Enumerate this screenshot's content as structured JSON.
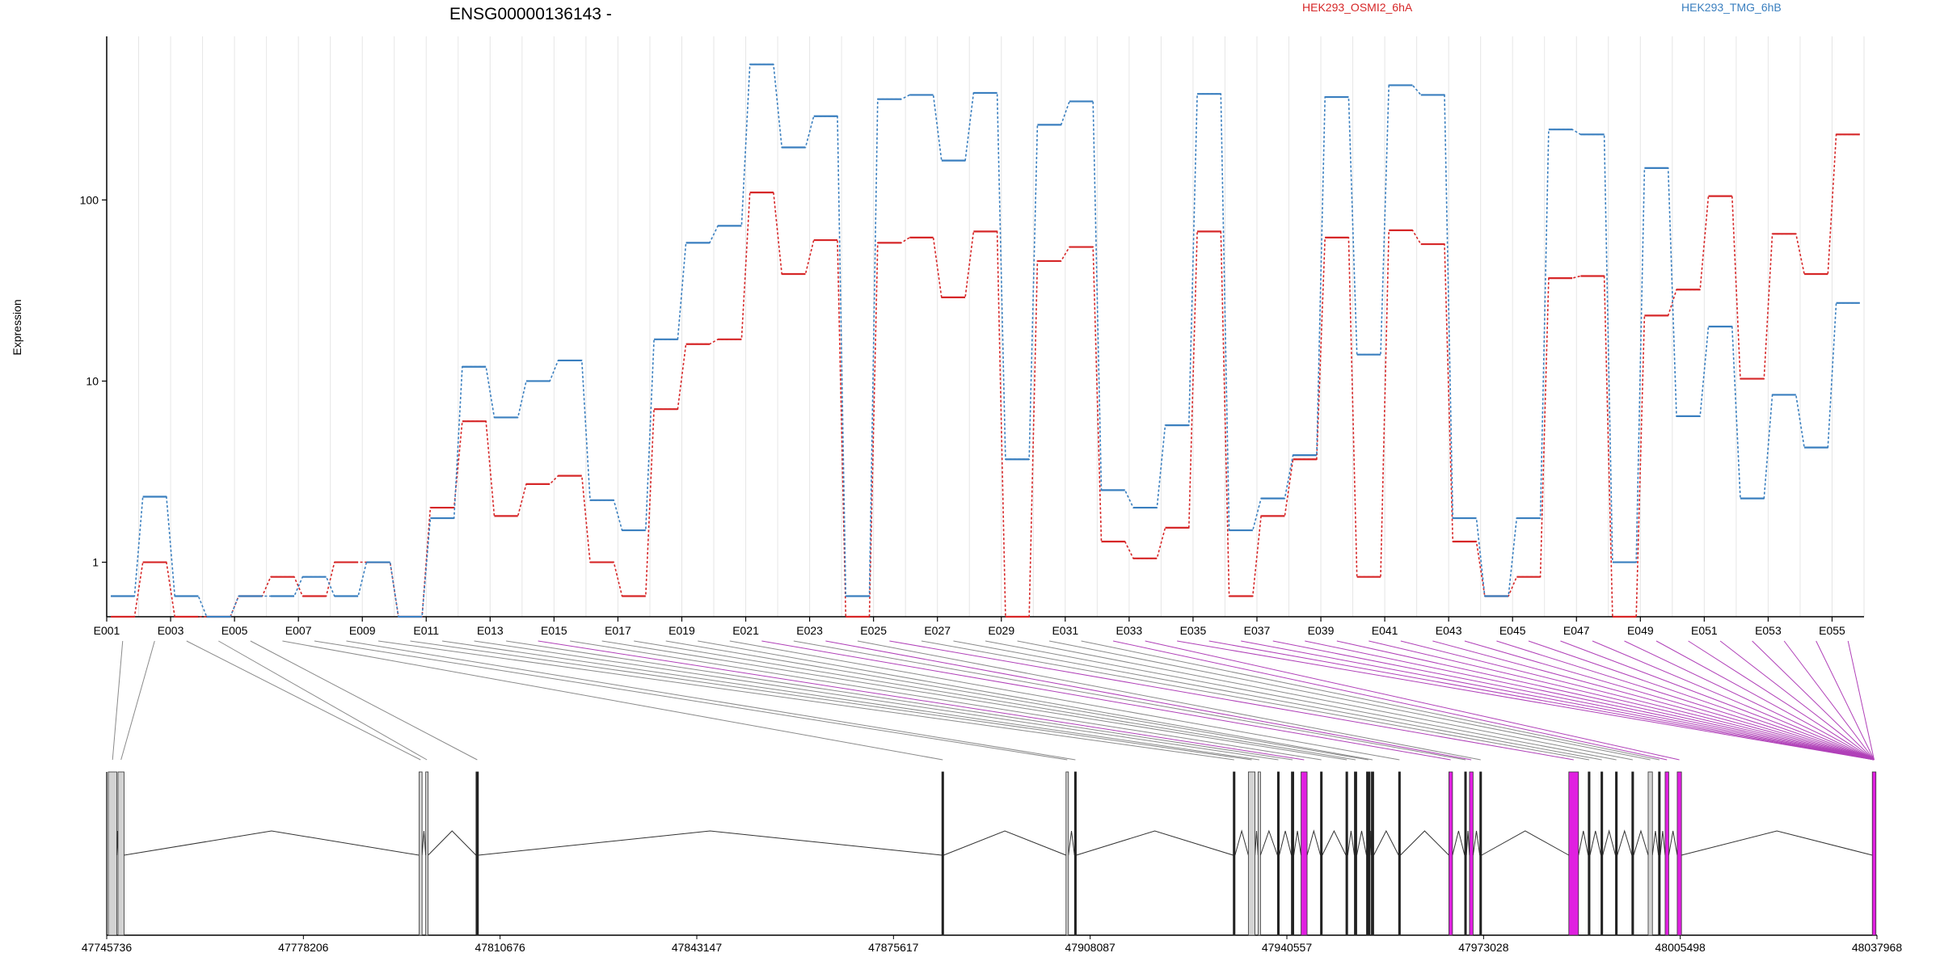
{
  "chart_data": {
    "type": "line",
    "title": "ENSG00000136143 -",
    "ylabel": "Expression",
    "xlabel": "",
    "y_scale": "log",
    "y_ticks": [
      1,
      10,
      100
    ],
    "ylim": [
      0.5,
      800
    ],
    "grid": "vertical lines at each exon",
    "legend_position": "top",
    "categories": [
      "E001",
      "E002",
      "E003",
      "E004",
      "E005",
      "E006",
      "E007",
      "E008",
      "E009",
      "E010",
      "E011",
      "E012",
      "E013",
      "E014",
      "E015",
      "E016",
      "E017",
      "E018",
      "E019",
      "E020",
      "E021",
      "E022",
      "E023",
      "E024",
      "E025",
      "E026",
      "E027",
      "E028",
      "E029",
      "E030",
      "E031",
      "E032",
      "E033",
      "E034",
      "E035",
      "E036",
      "E037",
      "E038",
      "E039",
      "E040",
      "E041",
      "E042",
      "E043",
      "E044",
      "E045",
      "E046",
      "E047",
      "E048",
      "E049",
      "E050",
      "E051",
      "E052",
      "E053",
      "E054",
      "E055"
    ],
    "tick_labels": [
      "E001",
      "E003",
      "E005",
      "E007",
      "E009",
      "E011",
      "E013",
      "E015",
      "E017",
      "E019",
      "E021",
      "E023",
      "E025",
      "E027",
      "E029",
      "E031",
      "E033",
      "E035",
      "E037",
      "E039",
      "E041",
      "E043",
      "E045",
      "E047",
      "E049",
      "E051",
      "E053",
      "E055"
    ],
    "series": [
      {
        "name": "HEK293_OSMI2_6hA",
        "color": "#d62728",
        "values": [
          0.5,
          1.0,
          0.5,
          0.5,
          0.65,
          0.83,
          0.65,
          1.0,
          1.0,
          0.5,
          2.0,
          6.0,
          1.8,
          2.7,
          3.0,
          1.0,
          0.65,
          7.0,
          16,
          17,
          110,
          39,
          60,
          0.5,
          58,
          62,
          29,
          67,
          0.5,
          46,
          55,
          1.3,
          1.05,
          1.55,
          67,
          0.65,
          1.8,
          3.7,
          62,
          0.83,
          68,
          57,
          1.3,
          0.65,
          0.83,
          37,
          38,
          0.5,
          23,
          32,
          105,
          10.3,
          65,
          39,
          230
        ]
      },
      {
        "name": "HEK293_TMG_6hB",
        "color": "#3a7fbf",
        "values": [
          0.65,
          2.3,
          0.65,
          0.5,
          0.65,
          0.65,
          0.83,
          0.65,
          1.0,
          0.5,
          1.75,
          12,
          6.3,
          10,
          13,
          2.2,
          1.5,
          17,
          58,
          72,
          560,
          195,
          290,
          0.65,
          360,
          380,
          165,
          390,
          3.7,
          260,
          350,
          2.5,
          2.0,
          5.7,
          385,
          1.5,
          2.25,
          3.9,
          370,
          14,
          430,
          380,
          1.75,
          0.65,
          1.75,
          245,
          230,
          1.0,
          150,
          6.4,
          20,
          2.25,
          8.4,
          4.3,
          27
        ]
      }
    ],
    "gene_model": {
      "coordinate_labels": [
        "47745736",
        "47778206",
        "47810676",
        "47843147",
        "47875617",
        "47908087",
        "47940557",
        "47973028",
        "48005498",
        "48037968"
      ],
      "coord_range": [
        47745736,
        48037968
      ],
      "exons": [
        {
          "pos": 47746000,
          "width": 1400,
          "color": "#d3d3d3",
          "outline": "#333333"
        },
        {
          "pos": 47747600,
          "width": 1000,
          "color": "#d3d3d3",
          "outline": "#333333"
        },
        {
          "pos": 47797300,
          "width": 500,
          "color": "#d3d3d3",
          "outline": "#333333"
        },
        {
          "pos": 47798400,
          "width": 400,
          "color": "#d3d3d3",
          "outline": "#333333"
        },
        {
          "pos": 47806700,
          "width": 400,
          "color": "#222222",
          "outline": "#222222"
        },
        {
          "pos": 47883600,
          "width": 300,
          "color": "#222222",
          "outline": "#222222"
        },
        {
          "pos": 47904100,
          "width": 400,
          "color": "#d3d3d3",
          "outline": "#333333"
        },
        {
          "pos": 47905500,
          "width": 300,
          "color": "#222222",
          "outline": "#222222"
        },
        {
          "pos": 47931700,
          "width": 300,
          "color": "#222222",
          "outline": "#222222"
        },
        {
          "pos": 47934200,
          "width": 1100,
          "color": "#d3d3d3",
          "outline": "#333333"
        },
        {
          "pos": 47935800,
          "width": 400,
          "color": "#d3d3d3",
          "outline": "#333333"
        },
        {
          "pos": 47939000,
          "width": 300,
          "color": "#222222",
          "outline": "#222222"
        },
        {
          "pos": 47941300,
          "width": 400,
          "color": "#222222",
          "outline": "#222222"
        },
        {
          "pos": 47942900,
          "width": 1000,
          "color": "#e020e0",
          "outline": "#333333"
        },
        {
          "pos": 47946100,
          "width": 300,
          "color": "#222222",
          "outline": "#222222"
        },
        {
          "pos": 47950300,
          "width": 300,
          "color": "#222222",
          "outline": "#222222"
        },
        {
          "pos": 47951700,
          "width": 400,
          "color": "#222222",
          "outline": "#222222"
        },
        {
          "pos": 47953700,
          "width": 600,
          "color": "#222222",
          "outline": "#222222"
        },
        {
          "pos": 47954500,
          "width": 400,
          "color": "#222222",
          "outline": "#222222"
        },
        {
          "pos": 47959000,
          "width": 300,
          "color": "#222222",
          "outline": "#222222"
        },
        {
          "pos": 47967300,
          "width": 600,
          "color": "#e020e0",
          "outline": "#333333"
        },
        {
          "pos": 47969900,
          "width": 300,
          "color": "#222222",
          "outline": "#222222"
        },
        {
          "pos": 47970700,
          "width": 600,
          "color": "#e020e0",
          "outline": "#333333"
        },
        {
          "pos": 47972400,
          "width": 300,
          "color": "#222222",
          "outline": "#222222"
        },
        {
          "pos": 47987100,
          "width": 1600,
          "color": "#e020e0",
          "outline": "#333333"
        },
        {
          "pos": 47990300,
          "width": 300,
          "color": "#222222",
          "outline": "#222222"
        },
        {
          "pos": 47992400,
          "width": 300,
          "color": "#222222",
          "outline": "#222222"
        },
        {
          "pos": 47994800,
          "width": 300,
          "color": "#222222",
          "outline": "#222222"
        },
        {
          "pos": 47997500,
          "width": 300,
          "color": "#222222",
          "outline": "#222222"
        },
        {
          "pos": 48000200,
          "width": 700,
          "color": "#d3d3d3",
          "outline": "#333333"
        },
        {
          "pos": 48001900,
          "width": 300,
          "color": "#222222",
          "outline": "#222222"
        },
        {
          "pos": 48003000,
          "width": 600,
          "color": "#e020e0",
          "outline": "#333333"
        },
        {
          "pos": 48005000,
          "width": 700,
          "color": "#e020e0",
          "outline": "#333333"
        },
        {
          "pos": 48037200,
          "width": 600,
          "color": "#e020e0",
          "outline": "#333333"
        }
      ]
    }
  }
}
